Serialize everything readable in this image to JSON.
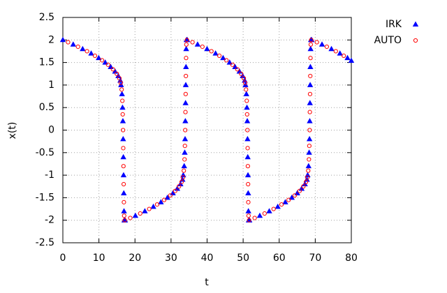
{
  "chart_data": {
    "type": "scatter",
    "xlabel": "t",
    "ylabel": "x(t)",
    "xlim": [
      0,
      80
    ],
    "xticks": [
      0,
      10,
      20,
      30,
      40,
      50,
      60,
      70,
      80
    ],
    "ylim": [
      -2.5,
      2.5
    ],
    "yticks": [
      -2.5,
      -2,
      -1.5,
      -1,
      -0.5,
      0,
      0.5,
      1,
      1.5,
      2,
      2.5
    ],
    "grid": true,
    "legend": "top-right",
    "series": [
      {
        "name": "IRK",
        "color": "#0000ff",
        "marker": "triangle",
        "x": [
          0,
          2.87,
          5.49,
          7.85,
          9.94,
          11.75,
          13.27,
          14.48,
          15.38,
          15.94,
          16.14,
          16.4,
          16.55,
          16.65,
          16.72,
          16.78,
          16.84,
          16.9,
          16.96,
          17.05,
          17.25,
          20.12,
          22.74,
          25.1,
          27.19,
          29,
          30.52,
          31.73,
          32.63,
          33.19,
          33.39,
          33.65,
          33.8,
          33.9,
          33.97,
          34.03,
          34.09,
          34.15,
          34.21,
          34.3,
          34.5,
          37.37,
          39.99,
          42.35,
          44.44,
          46.25,
          47.77,
          48.98,
          49.88,
          50.44,
          50.64,
          50.9,
          51.05,
          51.15,
          51.22,
          51.28,
          51.34,
          51.4,
          51.46,
          51.55,
          51.75,
          54.62,
          57.24,
          59.6,
          61.69,
          63.5,
          65.02,
          66.23,
          67.13,
          67.69,
          67.89,
          68.15,
          68.3,
          68.4,
          68.47,
          68.53,
          68.59,
          68.65,
          68.71,
          68.8,
          69,
          71.87,
          74.49,
          76.85,
          78.94,
          80
        ],
        "values": [
          2,
          1.9,
          1.8,
          1.7,
          1.6,
          1.5,
          1.4,
          1.3,
          1.2,
          1.1,
          1,
          0.8,
          0.5,
          0.2,
          -0.2,
          -0.6,
          -1,
          -1.4,
          -1.8,
          -2,
          -2,
          -1.9,
          -1.8,
          -1.7,
          -1.6,
          -1.5,
          -1.4,
          -1.3,
          -1.2,
          -1.1,
          -1,
          -0.8,
          -0.5,
          -0.2,
          0.2,
          0.6,
          1,
          1.4,
          1.8,
          2,
          2,
          1.9,
          1.8,
          1.7,
          1.6,
          1.5,
          1.4,
          1.3,
          1.2,
          1.1,
          1,
          0.8,
          0.5,
          0.2,
          -0.2,
          -0.6,
          -1,
          -1.4,
          -1.8,
          -2,
          -2,
          -1.9,
          -1.8,
          -1.7,
          -1.6,
          -1.5,
          -1.4,
          -1.3,
          -1.2,
          -1.1,
          -1,
          -0.8,
          -0.5,
          -0.2,
          0.2,
          0.6,
          1,
          1.4,
          1.8,
          2,
          2,
          1.9,
          1.8,
          1.7,
          1.6,
          1.54
        ]
      },
      {
        "name": "AUTO",
        "color": "#ff0000",
        "marker": "circle",
        "x": [
          1.45,
          4.2,
          6.7,
          8.9,
          10.85,
          12.55,
          13.9,
          14.95,
          15.68,
          16.05,
          16.3,
          16.5,
          16.6,
          16.69,
          16.75,
          16.81,
          16.87,
          16.93,
          17,
          17.15,
          18.7,
          21.45,
          23.95,
          26.15,
          28.1,
          29.8,
          31.15,
          32.2,
          32.93,
          33.3,
          33.55,
          33.75,
          33.85,
          33.94,
          34,
          34.06,
          34.12,
          34.18,
          34.25,
          34.4,
          35.95,
          38.7,
          41.2,
          43.4,
          45.35,
          47.05,
          48.4,
          49.45,
          50.18,
          50.55,
          50.8,
          51,
          51.1,
          51.19,
          51.25,
          51.31,
          51.37,
          51.43,
          51.5,
          51.65,
          53.2,
          55.95,
          58.45,
          60.65,
          62.6,
          64.3,
          65.65,
          66.7,
          67.43,
          67.8,
          68.05,
          68.25,
          68.35,
          68.44,
          68.5,
          68.56,
          68.62,
          68.68,
          68.75,
          68.9,
          70.45,
          73.2,
          75.7,
          77.9
        ],
        "values": [
          1.95,
          1.85,
          1.75,
          1.65,
          1.55,
          1.45,
          1.35,
          1.25,
          1.15,
          1.05,
          0.9,
          0.65,
          0.35,
          0,
          -0.4,
          -0.8,
          -1.2,
          -1.6,
          -1.9,
          -2,
          -1.95,
          -1.85,
          -1.75,
          -1.65,
          -1.55,
          -1.45,
          -1.35,
          -1.25,
          -1.15,
          -1.05,
          -0.9,
          -0.65,
          -0.35,
          0,
          0.4,
          0.8,
          1.2,
          1.6,
          1.9,
          2,
          1.95,
          1.85,
          1.75,
          1.65,
          1.55,
          1.45,
          1.35,
          1.25,
          1.15,
          1.05,
          0.9,
          0.65,
          0.35,
          0,
          -0.4,
          -0.8,
          -1.2,
          -1.6,
          -1.9,
          -2,
          -1.95,
          -1.85,
          -1.75,
          -1.65,
          -1.55,
          -1.45,
          -1.35,
          -1.25,
          -1.15,
          -1.05,
          -0.9,
          -0.65,
          -0.35,
          0,
          0.4,
          0.8,
          1.2,
          1.6,
          1.9,
          2,
          1.95,
          1.85,
          1.75,
          1.65
        ]
      }
    ]
  }
}
